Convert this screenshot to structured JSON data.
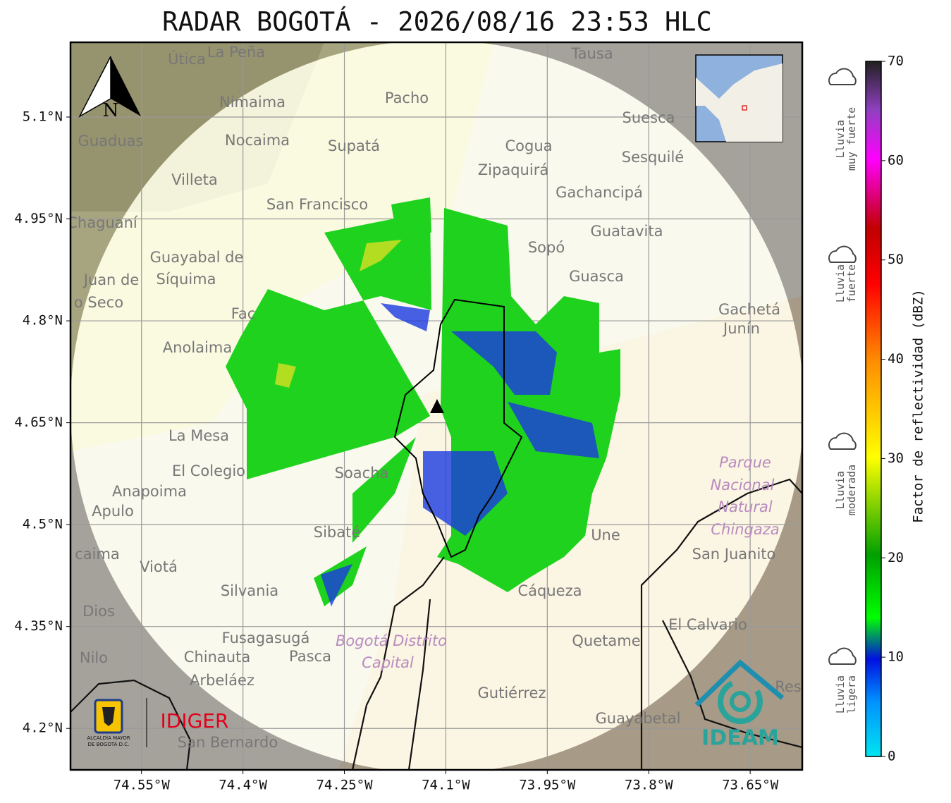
{
  "title": "RADAR BOGOTÁ - 2026/08/16 23:53 HLC",
  "map": {
    "xlim": [
      -74.655,
      -73.573
    ],
    "ylim": [
      4.139,
      5.21
    ],
    "xticks": [
      {
        "value": -74.55,
        "label": "74.55°W"
      },
      {
        "value": -74.4,
        "label": "74.4°W"
      },
      {
        "value": -74.25,
        "label": "74.25°W"
      },
      {
        "value": -74.1,
        "label": "74.1°W"
      },
      {
        "value": -73.95,
        "label": "73.95°W"
      },
      {
        "value": -73.8,
        "label": "73.8°W"
      },
      {
        "value": -73.65,
        "label": "73.65°W"
      }
    ],
    "yticks": [
      {
        "value": 5.1,
        "label": "5.1°N"
      },
      {
        "value": 4.95,
        "label": "4.95°N"
      },
      {
        "value": 4.8,
        "label": "4.8°N"
      },
      {
        "value": 4.65,
        "label": "4.65°N"
      },
      {
        "value": 4.5,
        "label": "4.5°N"
      },
      {
        "value": 4.35,
        "label": "4.35°N"
      },
      {
        "value": 4.2,
        "label": "4.2°N"
      }
    ],
    "north": "N",
    "places": [
      "Útica",
      "La Peña",
      "Tausa",
      "Pacho",
      "Nimaima",
      "Guaduas",
      "Nocaima",
      "Supatá",
      "Cogua",
      "Suesca",
      "Sesquilé",
      "Zipaquirá",
      "Villeta",
      "Gachancipá",
      "San Francisco",
      "Chaguaní",
      "Guatavita",
      "Sopó",
      "Guayabal de",
      "Síquima",
      "Juan de",
      "Guasca",
      "o Seco",
      "Gachetá",
      "Junín",
      "Fac",
      "Anolaima",
      "La Mesa",
      "El Colegio",
      "Soacha",
      "Anapoima",
      "Apulo",
      "Parque",
      "Nacional",
      "Natural",
      "Chingaza",
      "Sibaté",
      "Une",
      "San Juanito",
      "caima",
      "Viotá",
      "Silvania",
      "Cáqueza",
      "Dios",
      "El Calvario",
      "Fusagasugá",
      "Bogotá Distrito",
      "Capital",
      "Quetame",
      "Nilo",
      "Chinauta",
      "Pasca",
      "Arbeláez",
      "Gutiérrez",
      "Guayabetal",
      "San Bernardo",
      "Res"
    ]
  },
  "colorbar": {
    "label": "Factor de reflectividad (dBZ)",
    "lim": [
      0,
      70
    ],
    "ticks": [
      0,
      10,
      20,
      30,
      40,
      50,
      60,
      70
    ]
  },
  "legend": [
    [
      "Lluvia",
      "muy fuerte"
    ],
    [
      "Lluvia",
      "fuerte"
    ],
    [
      "Lluvia",
      "moderada"
    ],
    [
      "Lluvia",
      "ligera"
    ]
  ],
  "logos": {
    "alcaldia": [
      "ALCALDÍA MAYOR",
      "DE BOGOTÁ D.C."
    ],
    "idiger": "IDIGER",
    "ideam": "IDEAM"
  }
}
